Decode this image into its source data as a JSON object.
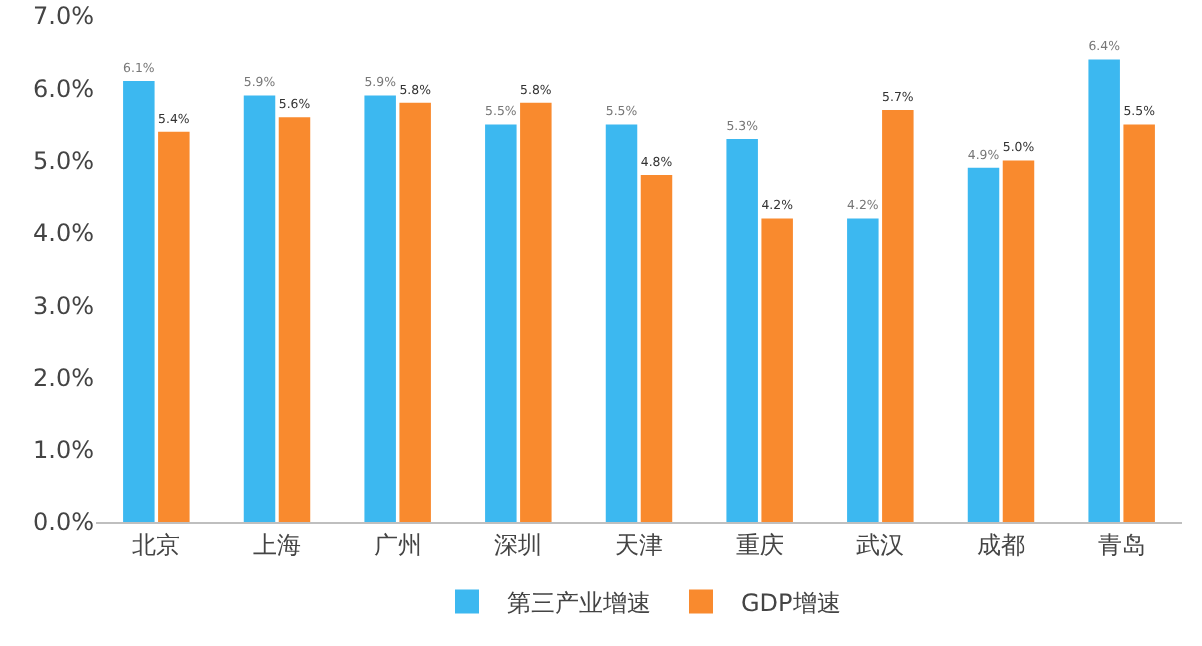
{
  "chart_data": {
    "type": "bar",
    "categories": [
      "北京",
      "上海",
      "广州",
      "深圳",
      "天津",
      "重庆",
      "武汉",
      "成都",
      "青岛"
    ],
    "series": [
      {
        "name": "第三产业增速",
        "color": "#3cb8f0",
        "values": [
          6.1,
          5.9,
          5.9,
          5.5,
          5.5,
          5.3,
          4.2,
          4.9,
          6.4
        ],
        "value_labels": [
          "6.1%",
          "5.9%",
          "5.9%",
          "5.5%",
          "5.5%",
          "5.3%",
          "4.2%",
          "4.9%",
          "6.4%"
        ]
      },
      {
        "name": "GDP增速",
        "color": "#f98a2e",
        "values": [
          5.4,
          5.6,
          5.8,
          5.8,
          4.8,
          4.2,
          5.7,
          5.0,
          5.5
        ],
        "value_labels": [
          "5.4%",
          "5.6%",
          "5.8%",
          "5.8%",
          "4.8%",
          "4.2%",
          "5.7%",
          "5.0%",
          "5.5%"
        ]
      }
    ],
    "ylim": [
      0,
      7
    ],
    "yticks": [
      {
        "value": 0,
        "label": "0.0%"
      },
      {
        "value": 1,
        "label": "1.0%"
      },
      {
        "value": 2,
        "label": "2.0%"
      },
      {
        "value": 3,
        "label": "3.0%"
      },
      {
        "value": 4,
        "label": "4.0%"
      },
      {
        "value": 5,
        "label": "5.0%"
      },
      {
        "value": 6,
        "label": "6.0%"
      },
      {
        "value": 7,
        "label": "7.0%"
      }
    ],
    "grid": false,
    "legend": "bottom"
  }
}
